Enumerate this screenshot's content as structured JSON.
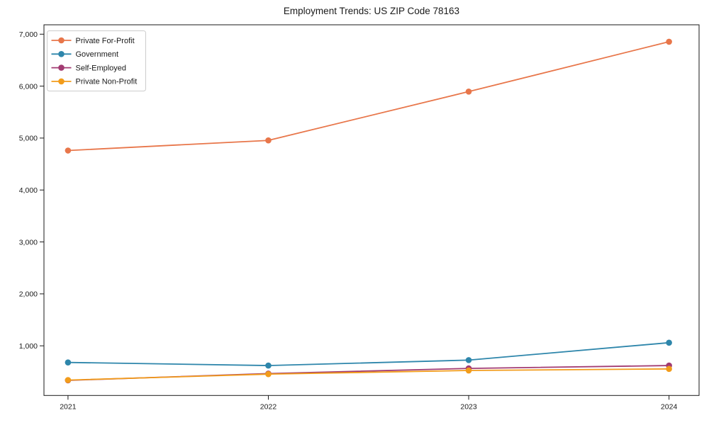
{
  "chart_data": {
    "type": "line",
    "title": "Employment Trends: US ZIP Code 78163",
    "x": [
      2021,
      2022,
      2023,
      2024
    ],
    "x_tick_labels": [
      "2021",
      "2022",
      "2023",
      "2024"
    ],
    "y_ticks": [
      1000,
      2000,
      3000,
      4000,
      5000,
      6000,
      7000
    ],
    "y_tick_labels": [
      "1,000",
      "2,000",
      "3,000",
      "4,000",
      "5,000",
      "6,000",
      "7,000"
    ],
    "series": [
      {
        "name": "Private For-Profit",
        "color": "#e8764a",
        "values": [
          4760,
          4955,
          5895,
          6855
        ]
      },
      {
        "name": "Government",
        "color": "#2e86ab",
        "values": [
          680,
          620,
          725,
          1060
        ]
      },
      {
        "name": "Self-Employed",
        "color": "#a23b72",
        "values": [
          335,
          465,
          565,
          620
        ]
      },
      {
        "name": "Private Non-Profit",
        "color": "#f29c1b",
        "values": [
          340,
          455,
          525,
          555
        ]
      }
    ],
    "xlabel": "",
    "ylabel": "",
    "xlim": [
      2020.88,
      2024.15
    ],
    "ylim": [
      44,
      7181
    ],
    "grid": false,
    "legend_position": "upper-left",
    "background_color": "#ffffff",
    "text_color": "#1a1a1a",
    "spine_color": "#1a1a1a",
    "legend_border_color": "#cccccc"
  }
}
